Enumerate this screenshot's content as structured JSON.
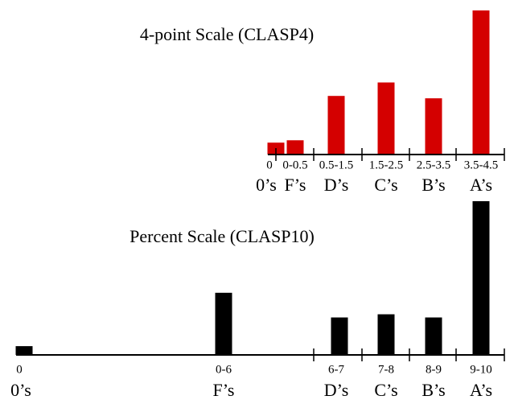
{
  "chart_data": [
    {
      "type": "bar",
      "title": "4-point Scale (CLASP4)",
      "color": "#d40000",
      "categories": [
        "0",
        "0-0.5",
        "0.5-1.5",
        "1.5-2.5",
        "2.5-3.5",
        "3.5-4.5"
      ],
      "grades": [
        "0’s",
        "F’s",
        "D’s",
        "C’s",
        "B’s",
        "A’s"
      ],
      "values": [
        15,
        18,
        74,
        91,
        71,
        182
      ],
      "ylim": [
        0,
        185
      ]
    },
    {
      "type": "bar",
      "title": "Percent Scale (CLASP10)",
      "color": "#000000",
      "categories": [
        "0",
        "0-6",
        "6-7",
        "7-8",
        "8-9",
        "9-10"
      ],
      "grades": [
        "0’s",
        "F’s",
        "D’s",
        "C’s",
        "B’s",
        "A’s"
      ],
      "values": [
        11,
        78,
        47,
        51,
        47,
        193
      ],
      "ylim": [
        0,
        195
      ]
    }
  ]
}
